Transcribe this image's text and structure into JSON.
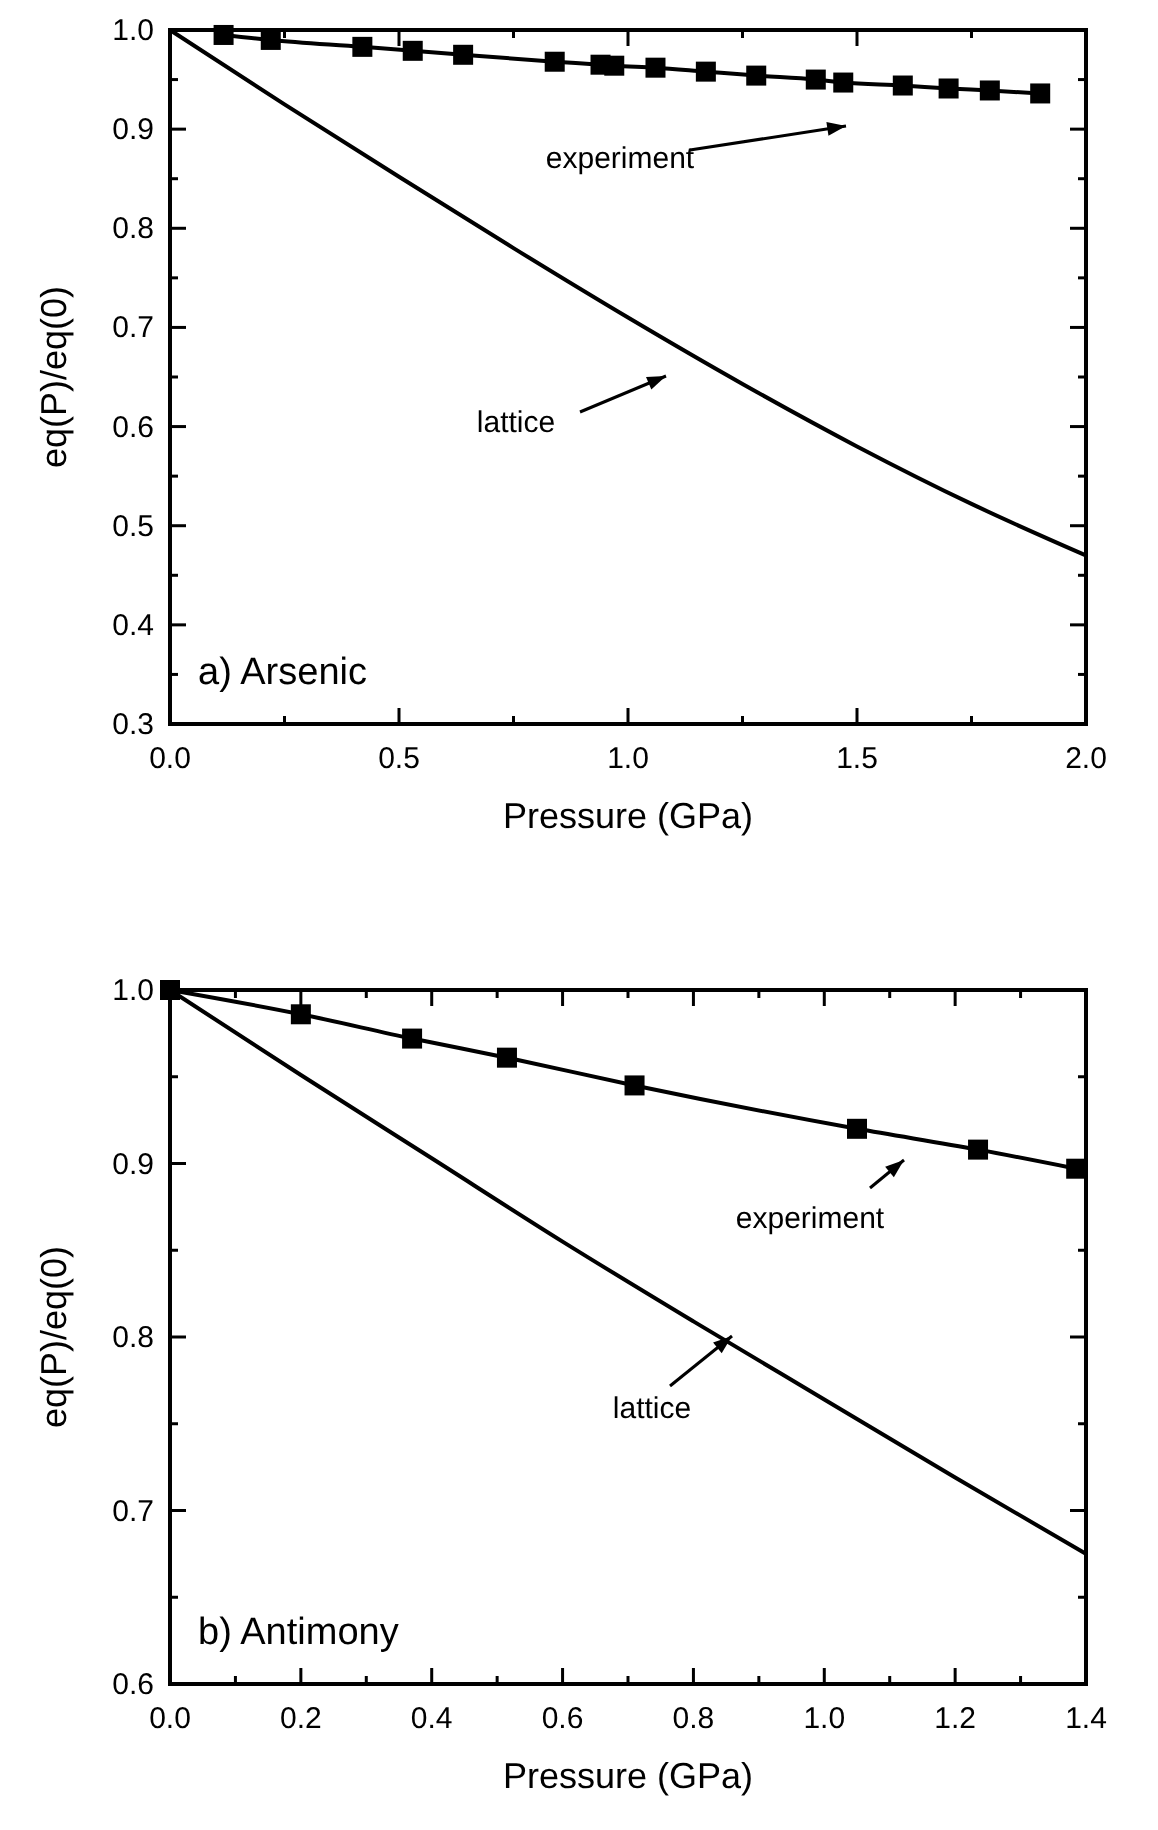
{
  "chart_data": [
    {
      "type": "line",
      "annotations": [
        "experiment",
        "lattice",
        "a) Arsenic"
      ],
      "xlabel": "Pressure (GPa)",
      "ylabel": "eq(P)/eq(0)",
      "xlim": [
        0,
        2
      ],
      "ylim": [
        0.3,
        1
      ],
      "xticks": [
        {
          "value": 0,
          "label": "0.0"
        },
        0.5,
        {
          "value": 1,
          "label": "1.0"
        },
        1.5,
        {
          "value": 2,
          "label": "2.0"
        }
      ],
      "yticks": [
        0.3,
        0.4,
        0.5,
        0.6,
        0.7,
        0.8,
        0.9,
        {
          "value": 1,
          "label": "1.0"
        }
      ],
      "series": [
        {
          "color": "#000000",
          "marker": "square",
          "x": [
            0.117,
            0.22,
            0.42,
            0.53,
            0.64,
            0.84,
            0.94,
            0.97,
            1.06,
            1.17,
            1.28,
            1.41,
            1.47,
            1.6,
            1.7,
            1.79,
            1.9
          ],
          "values": [
            0.995,
            0.99,
            0.983,
            0.979,
            0.975,
            0.968,
            0.965,
            0.964,
            0.962,
            0.958,
            0.954,
            0.95,
            0.947,
            0.944,
            0.941,
            0.939,
            0.936
          ]
        },
        {
          "color": "#000000",
          "marker": "none",
          "x": [
            0,
            0.25,
            0.5,
            0.75,
            1,
            1.25,
            1.5,
            1.75,
            2
          ],
          "values": [
            1,
            0.925,
            0.852,
            0.78,
            0.71,
            0.643,
            0.58,
            0.522,
            0.47
          ]
        }
      ]
    },
    {
      "type": "line",
      "annotations": [
        "experiment",
        "lattice",
        "b) Antimony"
      ],
      "xlabel": "Pressure (GPa)",
      "ylabel": "eq(P)/eq(0)",
      "xlim": [
        0,
        1.4
      ],
      "ylim": [
        0.6,
        1
      ],
      "xticks": [
        {
          "value": 0,
          "label": "0.0"
        },
        0.2,
        0.4,
        0.6,
        0.8,
        {
          "value": 1,
          "label": "1.0"
        },
        1.2,
        1.4
      ],
      "yticks": [
        0.6,
        0.7,
        0.8,
        0.9,
        {
          "value": 1,
          "label": "1.0"
        }
      ],
      "series": [
        {
          "color": "#000000",
          "marker": "square",
          "x": [
            0,
            0.2,
            0.37,
            0.515,
            0.71,
            1.05,
            1.235,
            1.385
          ],
          "values": [
            1,
            0.986,
            0.972,
            0.961,
            0.945,
            0.92,
            0.908,
            0.897
          ]
        },
        {
          "color": "#000000",
          "marker": "none",
          "x": [
            0,
            0.2,
            0.4,
            0.6,
            0.8,
            1,
            1.2,
            1.4
          ],
          "values": [
            1,
            0.951,
            0.903,
            0.855,
            0.809,
            0.764,
            0.719,
            0.675
          ]
        }
      ]
    }
  ]
}
